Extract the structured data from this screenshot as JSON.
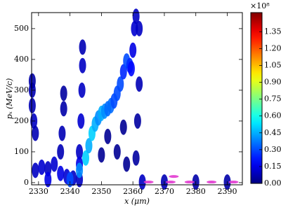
{
  "chart_data": {
    "type": "density",
    "xlabel": "x (μm)",
    "ylabel": "pₓ (MeV/c)",
    "xlim": [
      2327.8,
      2394.8
    ],
    "ylim": [
      -7,
      552
    ],
    "xticks": [
      2330,
      2340,
      2350,
      2360,
      2370,
      2380,
      2390
    ],
    "yticks": [
      0,
      100,
      200,
      300,
      400,
      500
    ],
    "colormap": "jet",
    "clim": [
      0,
      1.52
    ],
    "colorbar_multiplier": "×10⁸",
    "cticks": [
      {
        "value": 0,
        "label": "0.00"
      },
      {
        "value": 0.15,
        "label": "0.15"
      },
      {
        "value": 0.3,
        "label": "0.30"
      },
      {
        "value": 0.45,
        "label": "0.45"
      },
      {
        "value": 0.6,
        "label": "0.60"
      },
      {
        "value": 0.75,
        "label": "0.75"
      },
      {
        "value": 0.9,
        "label": "0.90"
      },
      {
        "value": 1.05,
        "label": "1.05"
      },
      {
        "value": 1.2,
        "label": "1.20"
      },
      {
        "value": 1.35,
        "label": "1.35"
      }
    ],
    "series": [
      {
        "x": [
          2328,
          2328,
          2328.5,
          2329,
          2328,
          2329,
          2331,
          2333,
          2335,
          2337,
          2339,
          2341,
          2343,
          2333,
          2337,
          2337.5,
          2338,
          2338,
          2343,
          2343.5,
          2343.8,
          2344,
          2344,
          2343,
          2340,
          2343,
          2345,
          2346,
          2347,
          2348,
          2349,
          2350,
          2351,
          2352,
          2353,
          2354,
          2355,
          2356,
          2357,
          2358,
          2359,
          2359.5,
          2360,
          2360.5,
          2361,
          2362,
          2362,
          2361.5,
          2361,
          2352,
          2355,
          2357,
          2358,
          2350,
          2363,
          2370,
          2380,
          2390
        ],
        "y": [
          300,
          250,
          200,
          160,
          330,
          40,
          50,
          45,
          60,
          30,
          20,
          15,
          10,
          10,
          100,
          160,
          240,
          290,
          100,
          200,
          300,
          380,
          440,
          60,
          10,
          40,
          80,
          120,
          160,
          190,
          210,
          225,
          232,
          240,
          250,
          265,
          290,
          320,
          360,
          395,
          380,
          370,
          430,
          500,
          540,
          500,
          320,
          200,
          80,
          150,
          100,
          180,
          60,
          90,
          2,
          2,
          2,
          2
        ],
        "values": [
          0.08,
          0.08,
          0.1,
          0.08,
          0.06,
          0.1,
          0.12,
          0.1,
          0.12,
          0.15,
          0.12,
          0.1,
          0.1,
          0.15,
          0.08,
          0.08,
          0.06,
          0.05,
          0.1,
          0.12,
          0.1,
          0.1,
          0.08,
          0.15,
          0.3,
          0.4,
          0.5,
          0.45,
          0.5,
          0.45,
          0.4,
          0.45,
          0.4,
          0.35,
          0.35,
          0.3,
          0.3,
          0.3,
          0.25,
          0.3,
          0.25,
          0.2,
          0.15,
          0.12,
          0.1,
          0.1,
          0.08,
          0.05,
          0.05,
          0.03,
          0.03,
          0.03,
          0.03,
          0.03,
          0.1,
          0.08,
          0.06,
          0.06
        ]
      },
      {
        "color": "#e23ad0",
        "x": [
          2365,
          2372,
          2373,
          2378,
          2385,
          2392
        ],
        "y": [
          2,
          2,
          20,
          2,
          2,
          2
        ]
      }
    ]
  }
}
